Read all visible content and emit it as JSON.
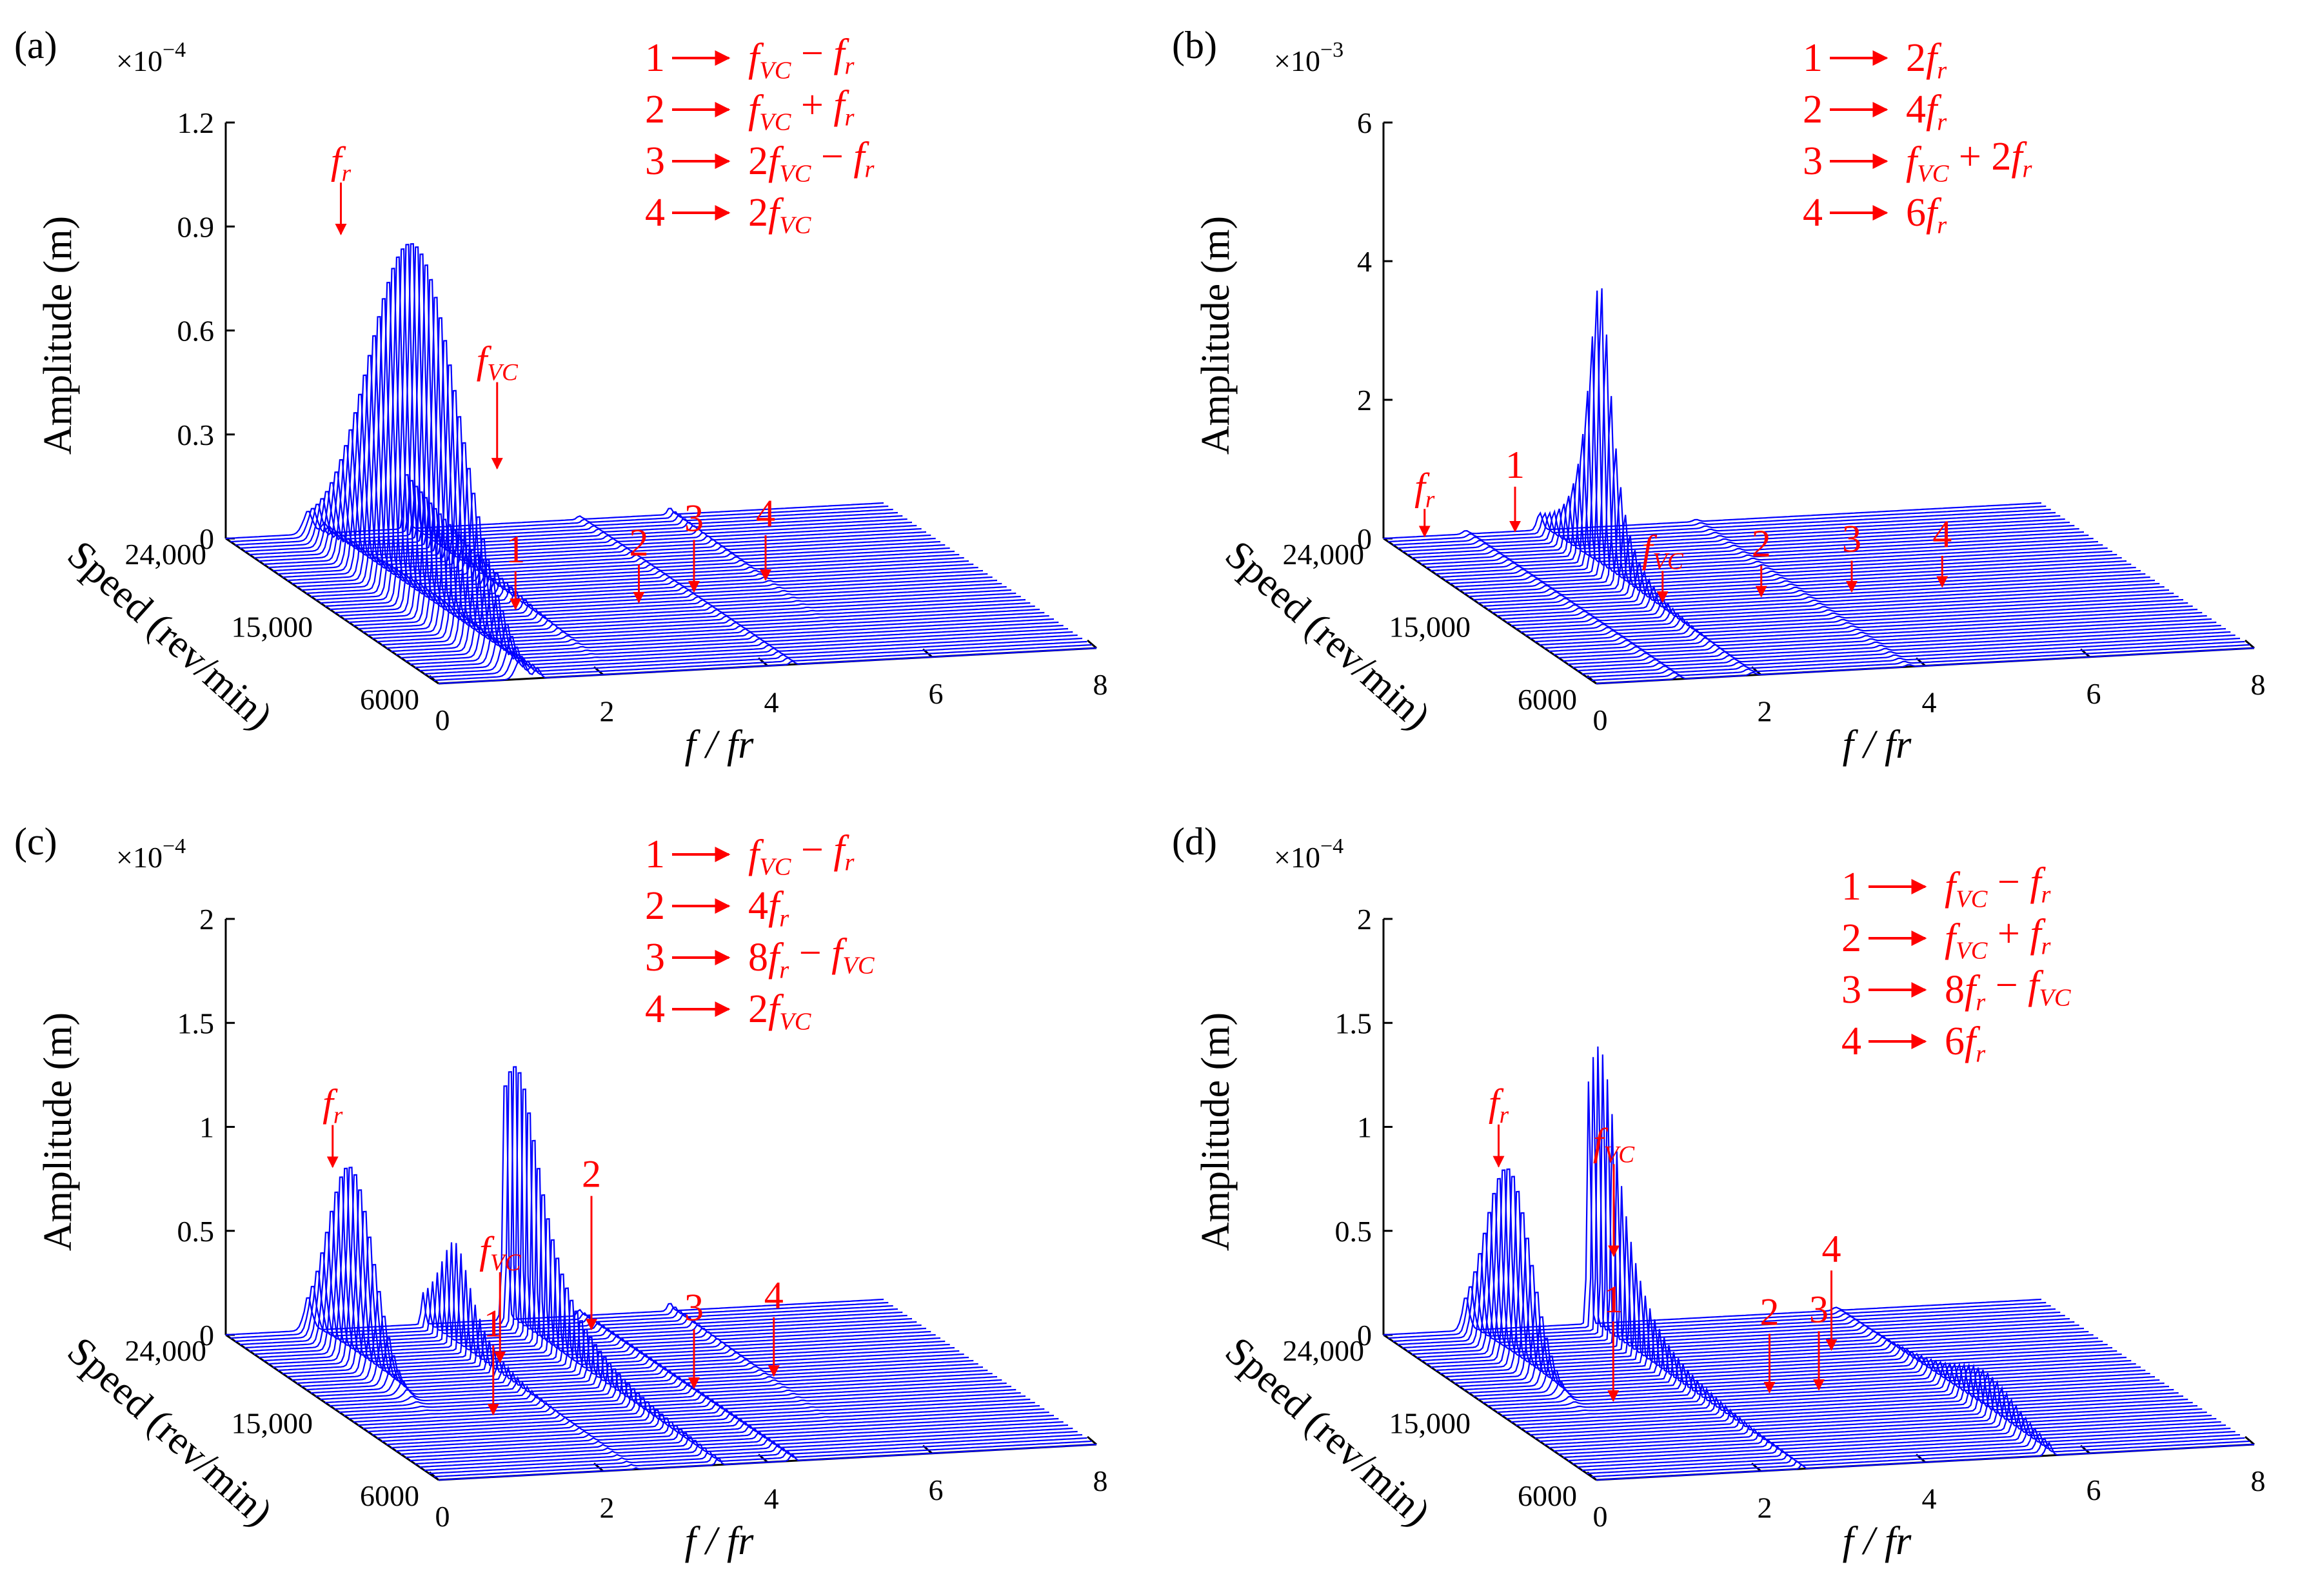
{
  "colors": {
    "trace": "#0000ff",
    "annotation": "#ff0000",
    "axis": "#000000"
  },
  "chart_data": [
    {
      "type": "waterfall",
      "panel_label": "(a)",
      "multiplier_base": "×10",
      "multiplier_exp": "−4",
      "zlabel": "Amplitude (m)",
      "ylabel": "Speed (rev/min)",
      "xlabel": "f / fr",
      "z_ticks": [
        "0",
        "0.3",
        "0.6",
        "0.9",
        "1.2"
      ],
      "z_range": [
        0,
        1.2
      ],
      "x_ticks": [
        "0",
        "2",
        "4",
        "6",
        "8"
      ],
      "x_range": [
        0,
        8
      ],
      "y_ticks": [
        "6000",
        "15,000",
        "24,000"
      ],
      "y_range": [
        6000,
        24000
      ],
      "peaks": [
        {
          "name": "fr",
          "x": 1.0,
          "height": 0.93,
          "rise": 0.14,
          "sigma": 0.09,
          "speed_shape": "bell",
          "speed_center": 0.5,
          "speed_width": 0.3
        },
        {
          "name": "fVC",
          "x": 2.2,
          "height": 0.18,
          "rise": 0.0,
          "sigma": 0.04,
          "speed_shape": "late"
        },
        {
          "name": "1",
          "x": 1.2,
          "height": 0.03,
          "rise": 0.0,
          "sigma": 0.05,
          "speed_shape": "flat"
        },
        {
          "name": "3",
          "x": 4.3,
          "height": 0.01,
          "rise": 0.0,
          "sigma": 0.04,
          "speed_shape": "flat"
        },
        {
          "name": "4",
          "x": 5.4,
          "height": 0.02,
          "rise": 0.0,
          "sigma": 0.04,
          "speed_shape": "late"
        }
      ],
      "callouts": [
        {
          "text": "f",
          "sub": "r",
          "x": 1.4,
          "y_frac": 1.0,
          "z": 1.02,
          "arrow_to_z": 0.86
        },
        {
          "text": "f",
          "sub": "VC",
          "x": 3.3,
          "y_frac": 1.0,
          "z": 0.42,
          "arrow_to_z": 0.16
        },
        {
          "text": "1",
          "sub": "",
          "x": 2.1,
          "y_frac": 0.45,
          "z": 0.12,
          "arrow_to_z": 0.0
        },
        {
          "text": "2",
          "sub": "",
          "x": 3.6,
          "y_frac": 0.45,
          "z": 0.12,
          "arrow_to_z": 0.0
        },
        {
          "text": "3",
          "sub": "",
          "x": 4.4,
          "y_frac": 0.5,
          "z": 0.16,
          "arrow_to_z": 0.0
        },
        {
          "text": "4",
          "sub": "",
          "x": 5.4,
          "y_frac": 0.55,
          "z": 0.14,
          "arrow_to_z": 0.0
        }
      ],
      "legend": [
        {
          "num": "1",
          "expr": "fVC − fr"
        },
        {
          "num": "2",
          "expr": "fVC + fr"
        },
        {
          "num": "3",
          "expr": "2fVC − fr"
        },
        {
          "num": "4",
          "expr": "2fVC"
        }
      ]
    },
    {
      "type": "waterfall",
      "panel_label": "(b)",
      "multiplier_base": "×10",
      "multiplier_exp": "−3",
      "zlabel": "Amplitude (m)",
      "ylabel": "Speed (rev/min)",
      "xlabel": "f / fr",
      "z_ticks": [
        "0",
        "2",
        "4",
        "6"
      ],
      "z_range": [
        0,
        6
      ],
      "x_ticks": [
        "0",
        "2",
        "4",
        "6",
        "8"
      ],
      "x_range": [
        0,
        8
      ],
      "y_ticks": [
        "6000",
        "15,000",
        "24,000"
      ],
      "y_range": [
        6000,
        24000
      ],
      "peaks": [
        {
          "name": "2fr",
          "x": 1.9,
          "height": 4.0,
          "rise": 0.25,
          "sigma": 0.05,
          "speed_shape": "resonance",
          "speed_center": 0.72,
          "speed_width": 0.07
        },
        {
          "name": "fr",
          "x": 1.0,
          "height": 0.05,
          "rise": 0.0,
          "sigma": 0.05,
          "speed_shape": "flat"
        },
        {
          "name": "4fr",
          "x": 3.8,
          "height": 0.03,
          "rise": 0.0,
          "sigma": 0.05,
          "speed_shape": "flat"
        }
      ],
      "callouts": [
        {
          "text": "f",
          "sub": "r",
          "x": 0.5,
          "y_frac": 1.0,
          "z": 0.45,
          "arrow_to_z": 0.0
        },
        {
          "text": "1",
          "sub": "",
          "x": 1.6,
          "y_frac": 1.0,
          "z": 0.7,
          "arrow_to_z": 0.0
        },
        {
          "text": "f",
          "sub": "VC",
          "x": 2.1,
          "y_frac": 0.5,
          "z": 0.5,
          "arrow_to_z": 0.0
        },
        {
          "text": "2",
          "sub": "",
          "x": 3.3,
          "y_frac": 0.5,
          "z": 0.5,
          "arrow_to_z": 0.0
        },
        {
          "text": "3",
          "sub": "",
          "x": 4.4,
          "y_frac": 0.5,
          "z": 0.5,
          "arrow_to_z": 0.0
        },
        {
          "text": "4",
          "sub": "",
          "x": 5.5,
          "y_frac": 0.5,
          "z": 0.5,
          "arrow_to_z": 0.0
        }
      ],
      "legend": [
        {
          "num": "1",
          "expr": "2fr"
        },
        {
          "num": "2",
          "expr": "4fr"
        },
        {
          "num": "3",
          "expr": "fVC + 2fr"
        },
        {
          "num": "4",
          "expr": "6fr"
        }
      ]
    },
    {
      "type": "waterfall",
      "panel_label": "(c)",
      "multiplier_base": "×10",
      "multiplier_exp": "−4",
      "zlabel": "Amplitude (m)",
      "ylabel": "Speed (rev/min)",
      "xlabel": "f / fr",
      "z_ticks": [
        "0",
        "0.5",
        "1",
        "1.5",
        "2"
      ],
      "z_range": [
        0,
        2
      ],
      "x_ticks": [
        "0",
        "2",
        "4",
        "6",
        "8"
      ],
      "x_range": [
        0,
        8
      ],
      "y_ticks": [
        "6000",
        "15,000",
        "24,000"
      ],
      "y_range": [
        6000,
        24000
      ],
      "peaks": [
        {
          "name": "fr",
          "x": 1.0,
          "height": 0.75,
          "rise": 0.2,
          "sigma": 0.08,
          "speed_shape": "bell",
          "speed_center": 0.8,
          "speed_width": 0.15
        },
        {
          "name": "fVC",
          "x": 2.4,
          "height": 0.5,
          "rise": 0.0,
          "sigma": 0.03,
          "speed_shape": "resonance",
          "speed_center": 0.85,
          "speed_width": 0.1
        },
        {
          "name": "4fr",
          "x": 3.4,
          "height": 1.1,
          "rise": 0.3,
          "sigma": 0.04,
          "speed_shape": "resonance",
          "speed_center": 0.95,
          "speed_width": 0.15
        },
        {
          "name": "3",
          "x": 4.3,
          "height": 0.03,
          "rise": 0.0,
          "sigma": 0.04,
          "speed_shape": "flat"
        },
        {
          "name": "4",
          "x": 5.4,
          "height": 0.04,
          "rise": 0.0,
          "sigma": 0.04,
          "speed_shape": "late"
        }
      ],
      "callouts": [
        {
          "text": "f",
          "sub": "r",
          "x": 1.3,
          "y_frac": 1.0,
          "z": 1.0,
          "arrow_to_z": 0.78
        },
        {
          "text": "f",
          "sub": "VC",
          "x": 2.3,
          "y_frac": 0.6,
          "z": 0.55,
          "arrow_to_z": 0.1
        },
        {
          "text": "1",
          "sub": "",
          "x": 1.7,
          "y_frac": 0.4,
          "z": 0.35,
          "arrow_to_z": 0.0
        },
        {
          "text": "2",
          "sub": "",
          "x": 3.8,
          "y_frac": 0.75,
          "z": 0.78,
          "arrow_to_z": 0.12
        },
        {
          "text": "3",
          "sub": "",
          "x": 4.4,
          "y_frac": 0.5,
          "z": 0.3,
          "arrow_to_z": 0.0
        },
        {
          "text": "4",
          "sub": "",
          "x": 5.5,
          "y_frac": 0.55,
          "z": 0.3,
          "arrow_to_z": 0.0
        }
      ],
      "legend": [
        {
          "num": "1",
          "expr": "fVC − fr"
        },
        {
          "num": "2",
          "expr": "4fr"
        },
        {
          "num": "3",
          "expr": "8fr − fVC"
        },
        {
          "num": "4",
          "expr": "2fVC"
        }
      ]
    },
    {
      "type": "waterfall",
      "panel_label": "(d)",
      "multiplier_base": "×10",
      "multiplier_exp": "−4",
      "zlabel": "Amplitude (m)",
      "ylabel": "Speed (rev/min)",
      "xlabel": "f / fr",
      "z_ticks": [
        "0",
        "0.5",
        "1",
        "1.5",
        "2"
      ],
      "z_range": [
        0,
        2
      ],
      "x_ticks": [
        "0",
        "2",
        "4",
        "6",
        "8"
      ],
      "x_range": [
        0,
        8
      ],
      "y_ticks": [
        "6000",
        "15,000",
        "24,000"
      ],
      "y_range": [
        6000,
        24000
      ],
      "peaks": [
        {
          "name": "fr",
          "x": 1.0,
          "height": 0.75,
          "rise": 0.2,
          "sigma": 0.07,
          "speed_shape": "bell",
          "speed_center": 0.8,
          "speed_width": 0.15
        },
        {
          "name": "fVC",
          "x": 2.5,
          "height": 1.3,
          "rise": 0.15,
          "sigma": 0.03,
          "speed_shape": "resonance",
          "speed_center": 0.95,
          "speed_width": 0.12
        },
        {
          "name": "6fr",
          "x": 5.5,
          "height": 0.2,
          "rise": 0.0,
          "sigma": 0.05,
          "speed_shape": "resonance",
          "speed_center": 0.3,
          "speed_width": 0.2
        }
      ],
      "callouts": [
        {
          "text": "f",
          "sub": "r",
          "x": 1.4,
          "y_frac": 1.0,
          "z": 1.0,
          "arrow_to_z": 0.78
        },
        {
          "text": "f",
          "sub": "VC",
          "x": 2.8,
          "y_frac": 1.0,
          "z": 0.78,
          "arrow_to_z": 0.32
        },
        {
          "text": "1",
          "sub": "",
          "x": 1.5,
          "y_frac": 0.5,
          "z": 0.4,
          "arrow_to_z": 0.0
        },
        {
          "text": "2",
          "sub": "",
          "x": 3.4,
          "y_frac": 0.5,
          "z": 0.3,
          "arrow_to_z": 0.0
        },
        {
          "text": "3",
          "sub": "",
          "x": 4.0,
          "y_frac": 0.5,
          "z": 0.3,
          "arrow_to_z": 0.0
        },
        {
          "text": "4",
          "sub": "",
          "x": 4.8,
          "y_frac": 0.75,
          "z": 0.4,
          "arrow_to_z": 0.0
        }
      ],
      "legend": [
        {
          "num": "1",
          "expr": "fVC − fr"
        },
        {
          "num": "2",
          "expr": "fVC + fr"
        },
        {
          "num": "3",
          "expr": "8fr − fVC"
        },
        {
          "num": "4",
          "expr": "6fr"
        }
      ]
    }
  ]
}
